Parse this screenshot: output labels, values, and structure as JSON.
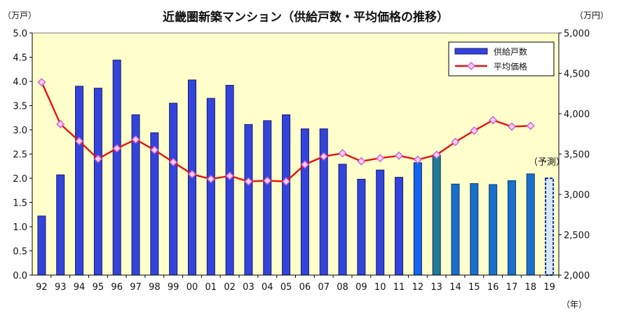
{
  "chart_data": {
    "type": "bar",
    "title": "近畿圏新築マンション（供給戸数・平均価格の推移）",
    "left_unit": "（万戸）",
    "right_unit": "（万円）",
    "x_unit": "（年）",
    "forecast_label": "（予測）",
    "categories": [
      "92",
      "93",
      "94",
      "95",
      "96",
      "97",
      "98",
      "99",
      "00",
      "01",
      "02",
      "03",
      "04",
      "05",
      "06",
      "07",
      "08",
      "09",
      "10",
      "11",
      "12",
      "13",
      "14",
      "15",
      "16",
      "17",
      "18",
      "19"
    ],
    "left_ticks": [
      "0.0",
      "0.5",
      "1.0",
      "1.5",
      "2.0",
      "2.5",
      "3.0",
      "3.5",
      "4.0",
      "4.5",
      "5.0"
    ],
    "right_ticks": [
      "2,000",
      "2,500",
      "3,000",
      "3,500",
      "4,000",
      "4,500",
      "5,000"
    ],
    "ylim_left": [
      0,
      5
    ],
    "ylim_right": [
      2000,
      5000
    ],
    "grid": false,
    "legend_position": "top-right",
    "colors": {
      "plot_bg": "#ffffcc",
      "bar": "#3344dd",
      "bar_2012": "#1166ee",
      "bar_2013": "#1f7a9e",
      "bar_late": "#1a6fcc",
      "line": "#e81010",
      "marker_fill": "#ffccff",
      "marker_edge": "#cc66cc",
      "forecast_dash": "#1133aa"
    },
    "series": [
      {
        "name": "供給戸数",
        "kind": "bar",
        "axis": "left",
        "values": [
          1.22,
          2.07,
          3.9,
          3.86,
          4.44,
          3.31,
          2.94,
          3.55,
          4.03,
          3.65,
          3.92,
          3.11,
          3.19,
          3.31,
          3.02,
          3.02,
          2.29,
          1.98,
          2.17,
          2.02,
          2.32,
          2.48,
          1.88,
          1.89,
          1.87,
          1.95,
          2.09,
          2.0
        ]
      },
      {
        "name": "平均価格",
        "kind": "line",
        "axis": "right",
        "values": [
          4390,
          3870,
          3660,
          3440,
          3570,
          3680,
          3550,
          3400,
          3250,
          3190,
          3230,
          3160,
          3170,
          3160,
          3370,
          3470,
          3510,
          3410,
          3450,
          3480,
          3430,
          3490,
          3650,
          3790,
          3920,
          3840,
          3850,
          null
        ]
      }
    ]
  }
}
